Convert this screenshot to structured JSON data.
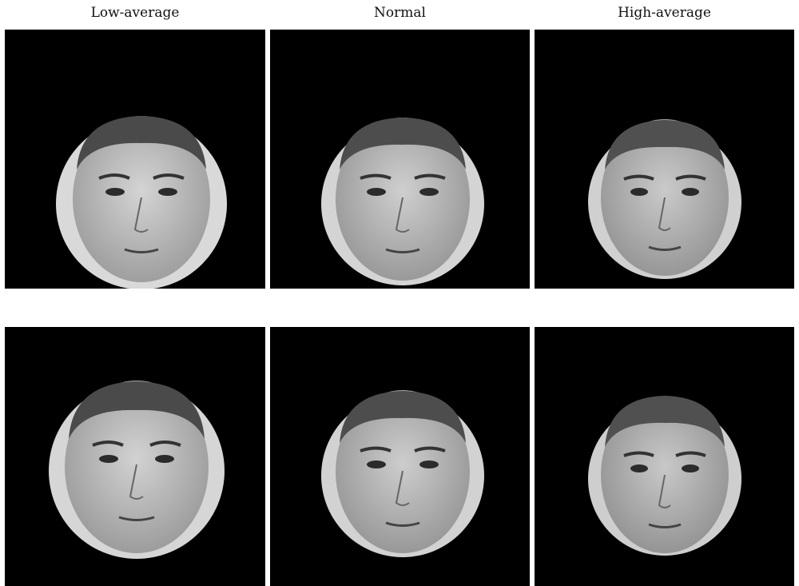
{
  "columns": [
    {
      "label": "Low-average"
    },
    {
      "label": "Normal"
    },
    {
      "label": "High-average"
    }
  ],
  "colors": {
    "panel_background": "#000000",
    "skin": "#c7c7c7",
    "hair": "#4a4a4a",
    "features": "#2b2b2b"
  },
  "icons": [
    "face-photo"
  ]
}
